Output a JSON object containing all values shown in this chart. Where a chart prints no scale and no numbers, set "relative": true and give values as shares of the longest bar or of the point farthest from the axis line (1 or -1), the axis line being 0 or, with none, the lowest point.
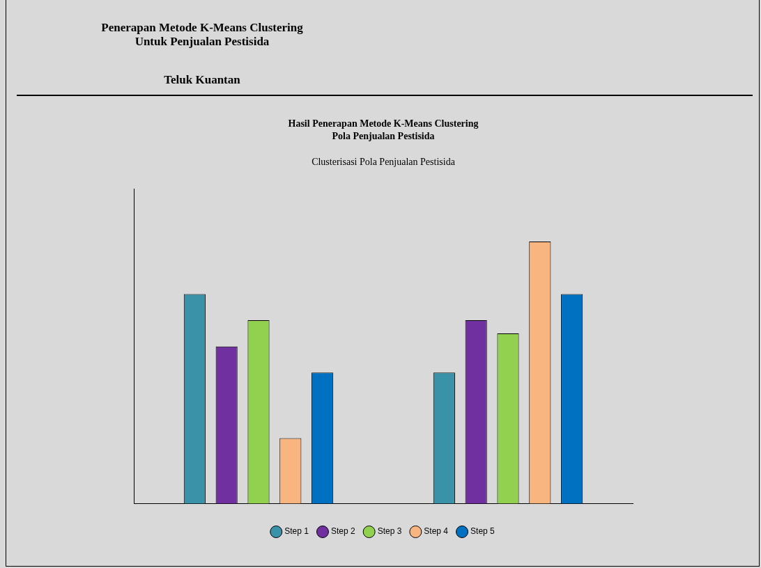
{
  "chart_data": {
    "type": "bar",
    "title": "Hasil Penerapan Metode K-Means Clustering\nPola Penjualan Pestisida",
    "subtitle": "Clusterisasi Pola Penjualan Pestisida",
    "annotations": [
      "Penerapan Metode K-Means Clustering\nUntuk Penjualan Pestisida",
      "Teluk Kuantan"
    ],
    "categories": [
      null,
      null
    ],
    "relative": true,
    "legend": "bottom",
    "grid": false,
    "series": [
      {
        "name": "Step 1",
        "color": "#3a92a9",
        "values": [
          0.8,
          0.5
        ]
      },
      {
        "name": "Step 2",
        "color": "#7030a0",
        "values": [
          0.6,
          0.7
        ]
      },
      {
        "name": "Step 3",
        "color": "#92d050",
        "values": [
          0.7,
          0.65
        ]
      },
      {
        "name": "Step 4",
        "color": "#f8b57f",
        "values": [
          0.25,
          1
        ]
      },
      {
        "name": "Step 5",
        "color": "#0070c0",
        "values": [
          0.5,
          0.8
        ]
      }
    ]
  }
}
